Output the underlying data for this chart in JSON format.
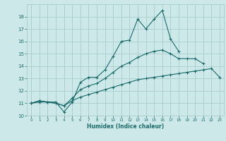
{
  "xlabel": "Humidex (Indice chaleur)",
  "bg_color": "#cde8e8",
  "grid_color": "#aacccc",
  "line_color": "#1a6b6b",
  "xlim": [
    -0.5,
    23.5
  ],
  "ylim": [
    10,
    19
  ],
  "yticks": [
    10,
    11,
    12,
    13,
    14,
    15,
    16,
    17,
    18
  ],
  "xticks": [
    0,
    1,
    2,
    3,
    4,
    5,
    6,
    7,
    8,
    9,
    10,
    11,
    12,
    13,
    14,
    15,
    16,
    17,
    18,
    19,
    20,
    21,
    22,
    23
  ],
  "series1_x": [
    0,
    1,
    2,
    3,
    4,
    5,
    6,
    7,
    8,
    9,
    10,
    11,
    12,
    13,
    14,
    15,
    16,
    17,
    18
  ],
  "series1_y": [
    11.0,
    11.2,
    11.1,
    11.1,
    10.3,
    11.1,
    12.7,
    13.1,
    13.1,
    13.7,
    14.8,
    16.0,
    16.1,
    17.8,
    17.0,
    17.8,
    18.5,
    16.2,
    15.2
  ],
  "series2_x": [
    0,
    1,
    2,
    3,
    4,
    5,
    6,
    7,
    8,
    9,
    10,
    11,
    12,
    13,
    14,
    15,
    16,
    17,
    18,
    19,
    20,
    21
  ],
  "series2_y": [
    11.0,
    11.2,
    11.1,
    11.0,
    10.8,
    11.4,
    12.1,
    12.4,
    12.6,
    13.0,
    13.5,
    14.0,
    14.3,
    14.7,
    15.0,
    15.2,
    15.3,
    15.0,
    14.6,
    14.6,
    14.6,
    14.2
  ],
  "series3_x": [
    0,
    1,
    2,
    3,
    4,
    5,
    6,
    7,
    8,
    9,
    10,
    11,
    12,
    13,
    14,
    15,
    16,
    17,
    18,
    19,
    20,
    21,
    22,
    23
  ],
  "series3_y": [
    11.0,
    11.1,
    11.1,
    11.0,
    10.8,
    11.2,
    11.5,
    11.7,
    11.9,
    12.1,
    12.3,
    12.5,
    12.7,
    12.9,
    13.0,
    13.1,
    13.2,
    13.3,
    13.4,
    13.5,
    13.6,
    13.7,
    13.8,
    13.1
  ]
}
